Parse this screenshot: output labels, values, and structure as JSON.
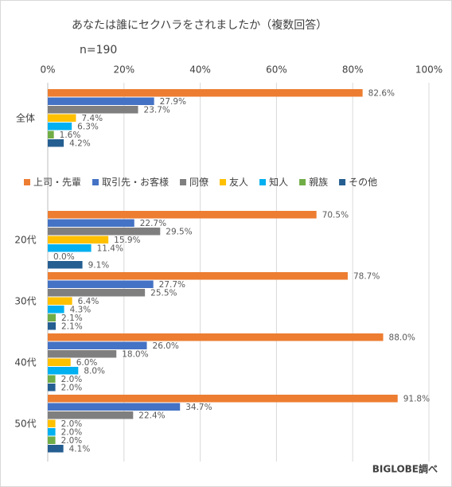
{
  "chart_data": {
    "type": "bar",
    "orientation": "horizontal",
    "title": "あなたは誰にセクハラをされましたか（複数回答）",
    "subtitle": "n=190",
    "source": "BIGLOBE調べ",
    "categories": [
      "全体",
      "20代",
      "30代",
      "40代",
      "50代"
    ],
    "xlim": [
      0,
      100
    ],
    "xticks": [
      {
        "value": 0,
        "label": "0%"
      },
      {
        "value": 20,
        "label": "20%"
      },
      {
        "value": 40,
        "label": "40%"
      },
      {
        "value": 60,
        "label": "60%"
      },
      {
        "value": 80,
        "label": "80%"
      },
      {
        "value": 100,
        "label": "100%"
      }
    ],
    "grid": true,
    "series": [
      {
        "name": "上司・先輩",
        "color": "#ED7D31",
        "values": [
          82.6,
          70.5,
          78.7,
          88.0,
          91.8
        ],
        "value_labels": [
          "82.6%",
          "70.5%",
          "78.7%",
          "88.0%",
          "91.8%"
        ]
      },
      {
        "name": "取引先・お客様",
        "color": "#4472C4",
        "values": [
          27.9,
          22.7,
          27.7,
          26.0,
          34.7
        ],
        "value_labels": [
          "27.9%",
          "22.7%",
          "27.7%",
          "26.0%",
          "34.7%"
        ]
      },
      {
        "name": "同僚",
        "color": "#7F7F7F",
        "values": [
          23.7,
          29.5,
          25.5,
          18.0,
          22.4
        ],
        "value_labels": [
          "23.7%",
          "29.5%",
          "25.5%",
          "18.0%",
          "22.4%"
        ]
      },
      {
        "name": "友人",
        "color": "#FFC000",
        "values": [
          7.4,
          15.9,
          6.4,
          6.0,
          2.0
        ],
        "value_labels": [
          "7.4%",
          "15.9%",
          "6.4%",
          "6.0%",
          "2.0%"
        ]
      },
      {
        "name": "知人",
        "color": "#00B0F0",
        "values": [
          6.3,
          11.4,
          4.3,
          8.0,
          2.0
        ],
        "value_labels": [
          "6.3%",
          "11.4%",
          "4.3%",
          "8.0%",
          "2.0%"
        ]
      },
      {
        "name": "親族",
        "color": "#70AD47",
        "values": [
          1.6,
          0.0,
          2.1,
          2.0,
          2.0
        ],
        "value_labels": [
          "1.6%",
          "0.0%",
          "2.1%",
          "2.0%",
          "2.0%"
        ]
      },
      {
        "name": "その他",
        "color": "#255E91",
        "values": [
          4.2,
          9.1,
          2.1,
          2.0,
          4.1
        ],
        "value_labels": [
          "4.2%",
          "9.1%",
          "2.1%",
          "2.0%",
          "4.1%"
        ]
      }
    ]
  }
}
